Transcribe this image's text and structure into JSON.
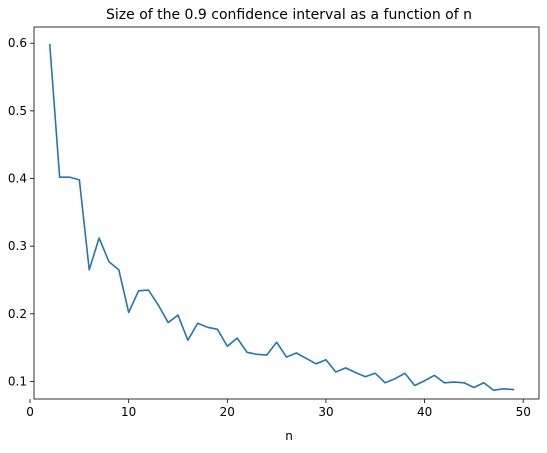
{
  "chart_data": {
    "type": "line",
    "title": "Size of the 0.9 confidence interval as a function of n",
    "xlabel": "n",
    "ylabel": "",
    "xlim": [
      0.4,
      51.6
    ],
    "ylim": [
      0.074,
      0.624
    ],
    "xticks": [
      0,
      10,
      20,
      30,
      40,
      50
    ],
    "yticks": [
      0.1,
      0.2,
      0.3,
      0.4,
      0.5,
      0.6
    ],
    "grid": false,
    "legend": "none",
    "series": [
      {
        "color": "#1f77b4",
        "x": [
          2,
          3,
          4,
          5,
          6,
          7,
          8,
          9,
          10,
          11,
          12,
          13,
          14,
          15,
          16,
          17,
          18,
          19,
          20,
          21,
          22,
          23,
          24,
          25,
          26,
          27,
          28,
          29,
          30,
          31,
          32,
          33,
          34,
          35,
          36,
          37,
          38,
          39,
          40,
          41,
          42,
          43,
          44,
          45,
          46,
          47,
          48,
          49
        ],
        "y": [
          0.598,
          0.402,
          0.402,
          0.398,
          0.265,
          0.312,
          0.277,
          0.265,
          0.202,
          0.234,
          0.235,
          0.213,
          0.187,
          0.198,
          0.161,
          0.186,
          0.18,
          0.177,
          0.152,
          0.164,
          0.143,
          0.14,
          0.139,
          0.158,
          0.136,
          0.142,
          0.134,
          0.126,
          0.132,
          0.114,
          0.12,
          0.113,
          0.107,
          0.112,
          0.098,
          0.104,
          0.112,
          0.094,
          0.101,
          0.109,
          0.098,
          0.099,
          0.098,
          0.091,
          0.098,
          0.087,
          0.089,
          0.088
        ]
      }
    ]
  }
}
